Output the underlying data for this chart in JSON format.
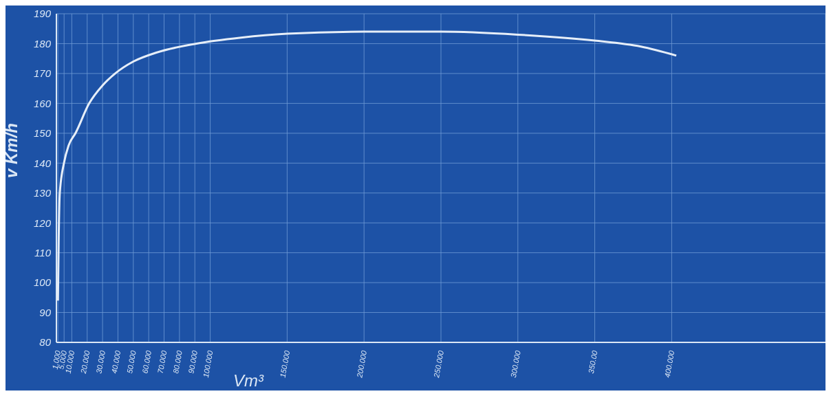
{
  "chart_data": {
    "type": "line",
    "xlabel": "Vm³",
    "ylabel": "v Km/h",
    "x": [
      1,
      1.5,
      2.2,
      4.9,
      8,
      12.4,
      21.3,
      30,
      38.2,
      50,
      65,
      91,
      120,
      150,
      200,
      250,
      300,
      350,
      380,
      403
    ],
    "values": [
      94,
      115,
      130,
      140,
      146,
      150,
      160,
      166,
      170,
      174,
      177,
      180,
      182,
      183.3,
      184,
      184,
      183,
      181,
      179,
      176
    ],
    "color": "#e6eef8",
    "xlim": [
      0,
      500
    ],
    "xticks": [
      {
        "value": 1,
        "label": "1.000"
      },
      {
        "value": 5,
        "label": "5.000"
      },
      {
        "value": 10,
        "label": "10.000"
      },
      {
        "value": 20,
        "label": "20.000"
      },
      {
        "value": 30,
        "label": "30.000"
      },
      {
        "value": 40,
        "label": "40.000"
      },
      {
        "value": 50,
        "label": "50.000"
      },
      {
        "value": 60,
        "label": "60.000"
      },
      {
        "value": 70,
        "label": "70.000"
      },
      {
        "value": 80,
        "label": "80.000"
      },
      {
        "value": 90,
        "label": "90.000"
      },
      {
        "value": 100,
        "label": "100.000"
      },
      {
        "value": 150,
        "label": "150.000"
      },
      {
        "value": 200,
        "label": "200.000"
      },
      {
        "value": 250,
        "label": "250.000"
      },
      {
        "value": 300,
        "label": "300.000"
      },
      {
        "value": 350,
        "label": "350.00"
      },
      {
        "value": 400,
        "label": "400.000"
      }
    ],
    "ylim": [
      80,
      190
    ],
    "yticks": [
      80,
      90,
      100,
      110,
      120,
      130,
      140,
      150,
      160,
      170,
      180,
      190
    ],
    "grid": true,
    "marker": "none",
    "line_style": "solid"
  }
}
